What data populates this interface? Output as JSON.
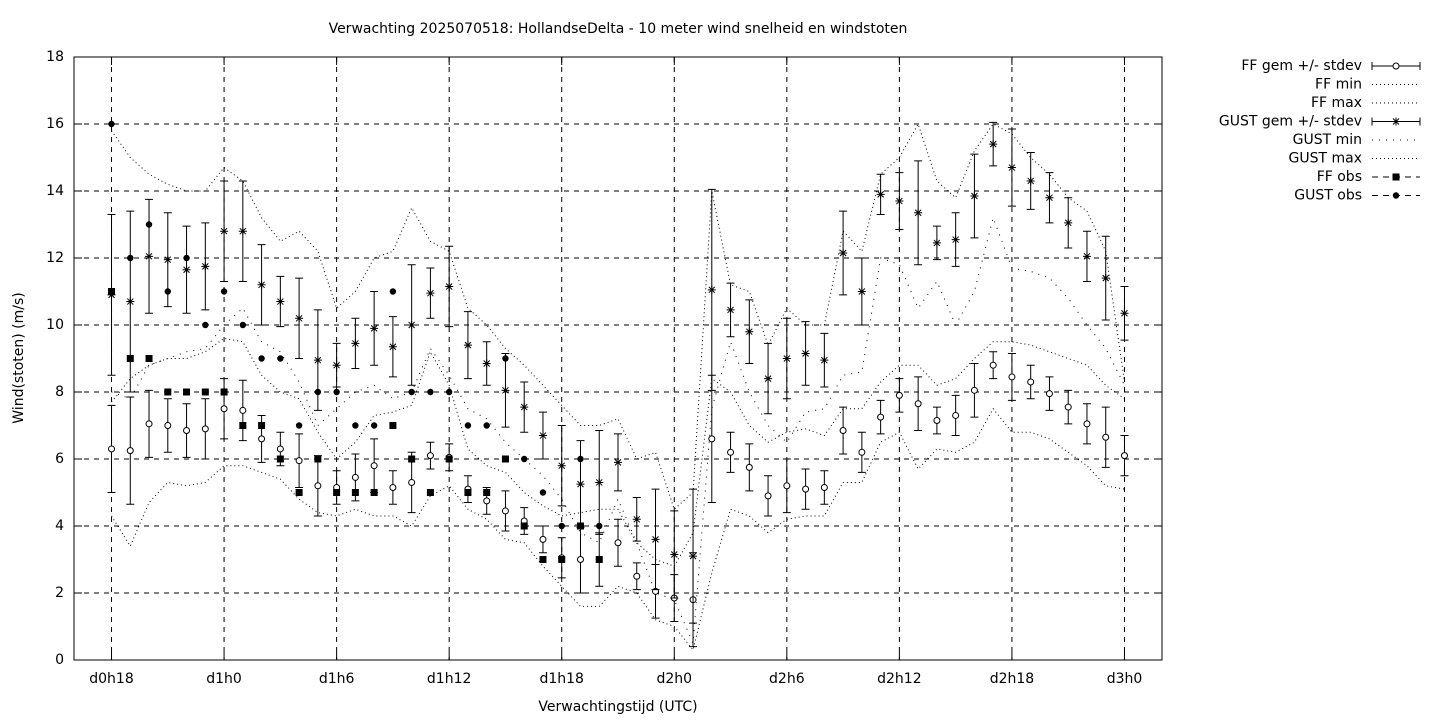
{
  "chart_data": {
    "type": "errorbar-line",
    "title": "Verwachting 2025070518: HollandseDelta - 10 meter wind snelheid en windstoten",
    "xlabel": "Verwachtingstijd (UTC)",
    "ylabel": "Wind(stoten) (m/s)",
    "x": [
      18,
      19,
      20,
      21,
      22,
      23,
      24,
      25,
      26,
      27,
      28,
      29,
      30,
      31,
      32,
      33,
      34,
      35,
      36,
      37,
      38,
      39,
      40,
      41,
      42,
      43,
      44,
      45,
      46,
      47,
      48,
      49,
      50,
      51,
      52,
      53,
      54,
      55,
      56,
      57,
      58,
      59,
      60,
      61,
      62,
      63,
      64,
      65,
      66,
      67,
      68,
      69,
      70,
      71,
      72
    ],
    "xlim": [
      16,
      74
    ],
    "xticks": [
      {
        "value": 18,
        "label": "d0h18"
      },
      {
        "value": 24,
        "label": "d1h0"
      },
      {
        "value": 30,
        "label": "d1h6"
      },
      {
        "value": 36,
        "label": "d1h12"
      },
      {
        "value": 42,
        "label": "d1h18"
      },
      {
        "value": 48,
        "label": "d2h0"
      },
      {
        "value": 54,
        "label": "d2h6"
      },
      {
        "value": 60,
        "label": "d2h12"
      },
      {
        "value": 66,
        "label": "d2h18"
      },
      {
        "value": 72,
        "label": "d3h0"
      }
    ],
    "ylim": [
      0,
      18
    ],
    "yticks": [
      0,
      2,
      4,
      6,
      8,
      10,
      12,
      14,
      16,
      18
    ],
    "grid": true,
    "legend": "outside-right",
    "series": [
      {
        "name": "FF gem +/- stdev",
        "color": "#000000",
        "marker": "circle-open",
        "line": "errorbars",
        "values": [
          6.3,
          6.25,
          7.05,
          7.0,
          6.85,
          6.9,
          7.5,
          7.45,
          6.6,
          6.3,
          5.95,
          5.2,
          5.15,
          5.45,
          5.8,
          5.15,
          5.3,
          6.1,
          6.05,
          5.1,
          4.75,
          4.45,
          4.15,
          3.6,
          3.05,
          3.0,
          3.0,
          3.5,
          2.5,
          2.05,
          1.85,
          1.8,
          6.6,
          6.2,
          5.75,
          4.9,
          5.2,
          5.1,
          5.15,
          6.85,
          6.2,
          7.25,
          7.9,
          7.65,
          7.15,
          7.3,
          8.05,
          8.8,
          8.45,
          8.3,
          7.95,
          7.55,
          7.05,
          6.65,
          6.1
        ],
        "errors": [
          1.3,
          1.6,
          1.0,
          0.8,
          0.8,
          0.9,
          0.9,
          0.9,
          0.7,
          0.5,
          0.8,
          0.9,
          0.5,
          0.7,
          0.8,
          0.5,
          0.9,
          0.4,
          0.4,
          0.4,
          0.4,
          0.6,
          0.4,
          0.4,
          0.6,
          1.0,
          0.8,
          0.7,
          0.4,
          0.8,
          0.7,
          1.4,
          1.9,
          0.6,
          0.7,
          0.6,
          0.8,
          0.6,
          0.5,
          0.7,
          0.6,
          0.5,
          0.5,
          0.8,
          0.4,
          0.6,
          0.8,
          0.4,
          0.7,
          0.5,
          0.5,
          0.5,
          0.6,
          0.9,
          0.6
        ]
      },
      {
        "name": "FF min",
        "color": "#000000",
        "marker": "none",
        "line": "dotted",
        "values": [
          4.3,
          3.4,
          4.7,
          5.3,
          5.2,
          5.3,
          5.8,
          5.8,
          5.6,
          5.4,
          4.8,
          4.4,
          4.3,
          4.5,
          4.3,
          4.3,
          4.0,
          4.9,
          5.2,
          4.5,
          4.2,
          3.6,
          3.5,
          2.8,
          2.2,
          1.6,
          1.6,
          2.2,
          2.0,
          1.2,
          1.0,
          0.3,
          2.6,
          4.5,
          4.3,
          3.8,
          4.2,
          4.3,
          4.3,
          5.3,
          5.3,
          6.5,
          6.8,
          5.7,
          6.3,
          6.2,
          6.5,
          7.5,
          6.8,
          6.8,
          6.6,
          6.2,
          5.8,
          5.2,
          5.1
        ]
      },
      {
        "name": "FF max",
        "color": "#000000",
        "marker": "none",
        "line": "dotted",
        "values": [
          7.7,
          8.4,
          8.8,
          9.0,
          9.0,
          9.2,
          9.6,
          9.5,
          8.5,
          8.0,
          7.8,
          6.8,
          6.0,
          6.5,
          7.3,
          7.4,
          7.6,
          9.2,
          8.2,
          6.3,
          5.8,
          5.6,
          5.0,
          4.6,
          4.3,
          4.4,
          4.5,
          4.5,
          3.5,
          3.0,
          2.8,
          3.8,
          8.4,
          8.0,
          7.0,
          6.5,
          6.8,
          6.9,
          6.7,
          7.5,
          7.5,
          8.3,
          8.8,
          8.8,
          8.2,
          8.4,
          9.0,
          9.5,
          9.5,
          9.4,
          9.2,
          9.0,
          8.8,
          8.2,
          7.8
        ]
      },
      {
        "name": "GUST gem +/- stdev",
        "color": "#000000",
        "marker": "star",
        "line": "errorbars",
        "values": [
          10.9,
          10.7,
          12.05,
          11.95,
          11.65,
          11.75,
          12.8,
          12.8,
          11.2,
          10.7,
          10.2,
          8.95,
          8.8,
          9.45,
          9.9,
          9.35,
          10.0,
          10.95,
          11.15,
          9.4,
          8.85,
          8.05,
          7.55,
          6.7,
          5.8,
          5.25,
          5.3,
          5.9,
          4.2,
          3.6,
          3.15,
          3.1,
          11.05,
          10.45,
          9.8,
          8.4,
          9.0,
          9.15,
          8.95,
          12.15,
          11.0,
          13.9,
          13.7,
          13.35,
          12.45,
          12.55,
          13.85,
          15.4,
          14.7,
          14.3,
          13.8,
          13.05,
          12.05,
          11.4,
          10.35
        ],
        "errors": [
          2.4,
          2.7,
          1.7,
          1.4,
          1.3,
          1.3,
          1.5,
          1.5,
          1.2,
          0.75,
          1.2,
          1.5,
          0.65,
          0.75,
          1.1,
          0.9,
          1.8,
          0.75,
          1.2,
          1.0,
          0.65,
          1.1,
          0.75,
          0.7,
          1.2,
          1.3,
          1.55,
          0.85,
          0.65,
          1.5,
          1.3,
          2.0,
          3.0,
          0.8,
          0.95,
          1.05,
          1.2,
          0.95,
          0.8,
          1.25,
          1.0,
          0.6,
          0.85,
          1.55,
          0.5,
          0.8,
          1.25,
          0.65,
          1.15,
          0.85,
          0.75,
          0.75,
          0.75,
          1.25,
          0.8
        ]
      },
      {
        "name": "GUST min",
        "color": "#000000",
        "marker": "none",
        "line": "sparse-dotted",
        "values": [
          8.0,
          7.8,
          8.8,
          9.0,
          9.2,
          9.3,
          10.0,
          10.5,
          9.5,
          9.2,
          8.3,
          7.0,
          7.5,
          8.0,
          8.2,
          7.8,
          8.0,
          9.3,
          8.5,
          7.5,
          7.2,
          6.5,
          6.0,
          5.5,
          4.8,
          3.8,
          3.5,
          4.8,
          3.5,
          2.0,
          1.8,
          0.5,
          7.5,
          9.5,
          8.0,
          7.0,
          6.5,
          7.4,
          7.5,
          8.5,
          8.6,
          12.0,
          11.8,
          10.5,
          11.3,
          10.0,
          11.0,
          13.2,
          11.7,
          11.6,
          11.4,
          10.8,
          10.0,
          9.3,
          8.2
        ]
      },
      {
        "name": "GUST max",
        "color": "#000000",
        "marker": "none",
        "line": "dotted",
        "values": [
          15.8,
          15.0,
          14.5,
          14.2,
          14.0,
          14.0,
          14.7,
          14.3,
          13.2,
          12.5,
          12.8,
          12.2,
          10.5,
          11.0,
          12.0,
          12.2,
          13.5,
          12.5,
          12.2,
          10.5,
          10.0,
          9.3,
          8.8,
          8.2,
          7.6,
          7.0,
          7.0,
          7.2,
          6.0,
          6.2,
          4.5,
          5.0,
          14.0,
          11.2,
          11.0,
          9.4,
          10.5,
          10.0,
          10.0,
          12.8,
          12.2,
          14.5,
          15.0,
          16.0,
          14.3,
          13.8,
          15.2,
          16.0,
          15.7,
          15.0,
          14.5,
          13.8,
          13.4,
          12.2,
          8.3
        ]
      },
      {
        "name": "FF obs",
        "color": "#000000",
        "marker": "square",
        "line": "points",
        "values": [
          11,
          9,
          9,
          8,
          8,
          8,
          8,
          7,
          7,
          6,
          5,
          6,
          5,
          5,
          5,
          7,
          6,
          5,
          6,
          5,
          5,
          6,
          4,
          3,
          3,
          4,
          3,
          null,
          null,
          null,
          null,
          null,
          null,
          null,
          null,
          null,
          null,
          null,
          null,
          null,
          null,
          null,
          null,
          null,
          null,
          null,
          null,
          null,
          null,
          null,
          null,
          null,
          null,
          null,
          null
        ]
      },
      {
        "name": "GUST obs",
        "color": "#000000",
        "marker": "circle",
        "line": "points",
        "values": [
          16,
          12,
          13,
          11,
          12,
          10,
          11,
          10,
          9,
          9,
          7,
          8,
          8,
          7,
          7,
          11,
          8,
          8,
          8,
          7,
          7,
          9,
          6,
          5,
          4,
          6,
          4,
          null,
          null,
          null,
          null,
          null,
          null,
          null,
          null,
          null,
          null,
          null,
          null,
          null,
          null,
          null,
          null,
          null,
          null,
          null,
          null,
          null,
          null,
          null,
          null,
          null,
          null,
          null,
          null
        ]
      }
    ]
  }
}
